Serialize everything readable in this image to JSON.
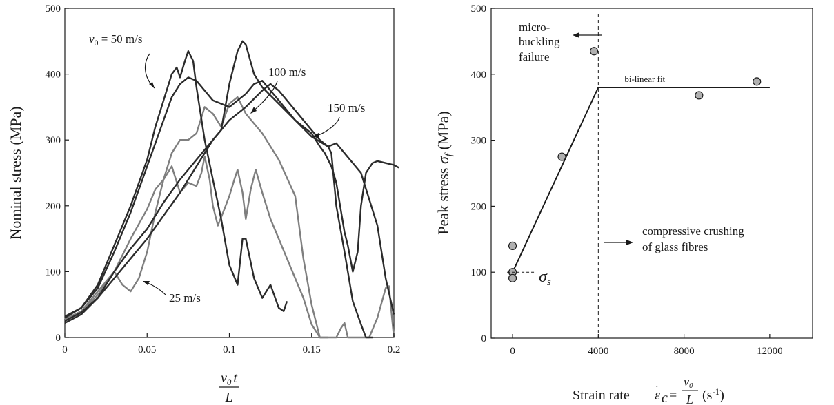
{
  "chart_data": [
    {
      "type": "line",
      "title": "",
      "ylabel": "Nominal stress (MPa)",
      "xlabel": {
        "numerator": "v0t",
        "denominator": "L"
      },
      "xlim": [
        0,
        0.2
      ],
      "ylim": [
        0,
        500
      ],
      "x_ticks": [
        0,
        0.05,
        0.1,
        0.15,
        0.2
      ],
      "x_tick_labels": [
        "0",
        "0.05",
        "0.1",
        "0.15",
        "0.2"
      ],
      "y_ticks": [
        0,
        100,
        200,
        300,
        400,
        500
      ],
      "y_tick_labels": [
        "0",
        "100",
        "200",
        "300",
        "400",
        "500"
      ],
      "grid": false,
      "annotations": {
        "v50": {
          "label_symbol": "v",
          "label_sub": "0",
          "label_rest": " = 50 m/s"
        },
        "v100": "100 m/s",
        "v150": "150 m/s",
        "v25": "25 m/s"
      },
      "series": [
        {
          "color": "#7f7f7f",
          "points": [
            [
              0,
              28
            ],
            [
              0.01,
              38
            ],
            [
              0.02,
              65
            ],
            [
              0.03,
              100
            ],
            [
              0.035,
              80
            ],
            [
              0.04,
              70
            ],
            [
              0.045,
              90
            ],
            [
              0.05,
              130
            ],
            [
              0.055,
              190
            ],
            [
              0.06,
              240
            ],
            [
              0.065,
              260
            ],
            [
              0.07,
              220
            ],
            [
              0.075,
              235
            ],
            [
              0.08,
              230
            ],
            [
              0.083,
              250
            ],
            [
              0.085,
              275
            ],
            [
              0.088,
              240
            ],
            [
              0.09,
              200
            ],
            [
              0.093,
              170
            ],
            [
              0.097,
              195
            ],
            [
              0.1,
              215
            ],
            [
              0.103,
              240
            ],
            [
              0.105,
              255
            ],
            [
              0.108,
              220
            ],
            [
              0.11,
              180
            ],
            [
              0.113,
              225
            ],
            [
              0.116,
              255
            ],
            [
              0.12,
              220
            ],
            [
              0.125,
              180
            ],
            [
              0.13,
              150
            ],
            [
              0.135,
              120
            ],
            [
              0.14,
              90
            ],
            [
              0.145,
              60
            ],
            [
              0.15,
              20
            ],
            [
              0.155,
              0
            ],
            [
              0.165,
              0
            ],
            [
              0.168,
              15
            ],
            [
              0.17,
              22
            ],
            [
              0.172,
              0
            ],
            [
              0.185,
              0
            ],
            [
              0.19,
              30
            ],
            [
              0.195,
              75
            ],
            [
              0.197,
              78
            ],
            [
              0.2,
              0
            ]
          ]
        },
        {
          "color": "#7f7f7f",
          "points": [
            [
              0,
              28
            ],
            [
              0.01,
              40
            ],
            [
              0.02,
              70
            ],
            [
              0.03,
              100
            ],
            [
              0.04,
              150
            ],
            [
              0.05,
              195
            ],
            [
              0.055,
              225
            ],
            [
              0.06,
              240
            ],
            [
              0.065,
              280
            ],
            [
              0.07,
              300
            ],
            [
              0.075,
              300
            ],
            [
              0.08,
              310
            ],
            [
              0.085,
              350
            ],
            [
              0.09,
              340
            ],
            [
              0.095,
              320
            ],
            [
              0.1,
              355
            ],
            [
              0.105,
              365
            ],
            [
              0.11,
              340
            ],
            [
              0.12,
              310
            ],
            [
              0.13,
              270
            ],
            [
              0.14,
              215
            ],
            [
              0.145,
              120
            ],
            [
              0.15,
              50
            ],
            [
              0.155,
              0
            ],
            [
              0.16,
              0
            ]
          ]
        },
        {
          "color": "#2b2b2b",
          "points": [
            [
              0,
              30
            ],
            [
              0.01,
              45
            ],
            [
              0.02,
              80
            ],
            [
              0.03,
              140
            ],
            [
              0.04,
              200
            ],
            [
              0.05,
              270
            ],
            [
              0.055,
              320
            ],
            [
              0.06,
              360
            ],
            [
              0.065,
              400
            ],
            [
              0.068,
              410
            ],
            [
              0.07,
              395
            ],
            [
              0.073,
              420
            ],
            [
              0.075,
              435
            ],
            [
              0.078,
              420
            ],
            [
              0.08,
              380
            ],
            [
              0.085,
              300
            ],
            [
              0.09,
              240
            ],
            [
              0.095,
              180
            ],
            [
              0.1,
              110
            ],
            [
              0.105,
              80
            ],
            [
              0.108,
              150
            ],
            [
              0.11,
              150
            ],
            [
              0.115,
              90
            ],
            [
              0.12,
              60
            ],
            [
              0.125,
              80
            ],
            [
              0.13,
              45
            ],
            [
              0.133,
              40
            ],
            [
              0.135,
              55
            ]
          ]
        },
        {
          "color": "#2b2b2b",
          "points": [
            [
              0,
              32
            ],
            [
              0.01,
              45
            ],
            [
              0.02,
              75
            ],
            [
              0.03,
              130
            ],
            [
              0.04,
              190
            ],
            [
              0.05,
              260
            ],
            [
              0.06,
              330
            ],
            [
              0.065,
              365
            ],
            [
              0.07,
              385
            ],
            [
              0.075,
              395
            ],
            [
              0.08,
              390
            ],
            [
              0.09,
              360
            ],
            [
              0.1,
              350
            ],
            [
              0.11,
              370
            ],
            [
              0.115,
              385
            ],
            [
              0.12,
              390
            ],
            [
              0.13,
              360
            ],
            [
              0.14,
              330
            ],
            [
              0.15,
              305
            ],
            [
              0.16,
              290
            ],
            [
              0.162,
              280
            ],
            [
              0.165,
              200
            ],
            [
              0.17,
              130
            ],
            [
              0.175,
              55
            ],
            [
              0.18,
              20
            ],
            [
              0.183,
              0
            ],
            [
              0.187,
              0
            ]
          ]
        },
        {
          "color": "#2b2b2b",
          "points": [
            [
              0,
              25
            ],
            [
              0.01,
              38
            ],
            [
              0.02,
              60
            ],
            [
              0.03,
              100
            ],
            [
              0.04,
              135
            ],
            [
              0.05,
              165
            ],
            [
              0.06,
              205
            ],
            [
              0.07,
              240
            ],
            [
              0.08,
              270
            ],
            [
              0.09,
              300
            ],
            [
              0.1,
              330
            ],
            [
              0.11,
              350
            ],
            [
              0.12,
              375
            ],
            [
              0.125,
              385
            ],
            [
              0.13,
              375
            ],
            [
              0.14,
              345
            ],
            [
              0.15,
              315
            ],
            [
              0.155,
              300
            ],
            [
              0.16,
              290
            ],
            [
              0.165,
              295
            ],
            [
              0.17,
              280
            ],
            [
              0.18,
              250
            ],
            [
              0.19,
              170
            ],
            [
              0.195,
              90
            ],
            [
              0.2,
              35
            ]
          ]
        },
        {
          "color": "#2b2b2b",
          "points": [
            [
              0,
              22
            ],
            [
              0.01,
              35
            ],
            [
              0.02,
              60
            ],
            [
              0.03,
              90
            ],
            [
              0.04,
              120
            ],
            [
              0.05,
              150
            ],
            [
              0.06,
              185
            ],
            [
              0.07,
              220
            ],
            [
              0.08,
              260
            ],
            [
              0.09,
              300
            ],
            [
              0.095,
              315
            ],
            [
              0.1,
              385
            ],
            [
              0.105,
              435
            ],
            [
              0.108,
              450
            ],
            [
              0.11,
              445
            ],
            [
              0.115,
              400
            ],
            [
              0.12,
              380
            ],
            [
              0.13,
              355
            ],
            [
              0.14,
              330
            ],
            [
              0.15,
              310
            ],
            [
              0.155,
              290
            ],
            [
              0.158,
              280
            ],
            [
              0.162,
              260
            ],
            [
              0.165,
              235
            ],
            [
              0.17,
              160
            ],
            [
              0.172,
              140
            ],
            [
              0.175,
              100
            ],
            [
              0.178,
              130
            ],
            [
              0.18,
              200
            ],
            [
              0.183,
              250
            ],
            [
              0.187,
              265
            ],
            [
              0.19,
              268
            ],
            [
              0.195,
              265
            ],
            [
              0.2,
              262
            ],
            [
              0.203,
              258
            ]
          ]
        }
      ]
    },
    {
      "type": "scatter",
      "title": "",
      "ylabel": {
        "text": "Peak stress ",
        "symbol": "σ",
        "sub": "f",
        "unit": " (MPa)"
      },
      "xlabel": {
        "prefix": "Strain rate ",
        "eps": "ε",
        "eps_sub": "c",
        "eq": "=",
        "num": "v",
        "num_sub": "0",
        "den": "L",
        "unit": "(s",
        "unit_sup": "-1",
        "unit_close": ")"
      },
      "xlim": [
        -1000,
        14000
      ],
      "ylim": [
        0,
        500
      ],
      "x_ticks": [
        0,
        4000,
        8000,
        12000
      ],
      "x_tick_labels": [
        "0",
        "4000",
        "8000",
        "12000"
      ],
      "y_ticks": [
        0,
        100,
        200,
        300,
        400,
        500
      ],
      "y_tick_labels": [
        "0",
        "100",
        "200",
        "300",
        "400",
        "500"
      ],
      "grid": false,
      "points": [
        {
          "x": 0,
          "y": 140
        },
        {
          "x": 0,
          "y": 100
        },
        {
          "x": 0,
          "y": 91
        },
        {
          "x": 2300,
          "y": 275
        },
        {
          "x": 3800,
          "y": 435
        },
        {
          "x": 8700,
          "y": 368
        },
        {
          "x": 11400,
          "y": 389
        }
      ],
      "fit": {
        "label": "bi-linear fit",
        "points": [
          [
            0,
            100
          ],
          [
            4000,
            380
          ],
          [
            12000,
            380
          ]
        ]
      },
      "divider_x": 4000,
      "sigma_s": {
        "y": 100,
        "symbol": "σ",
        "sub": "s"
      },
      "annotations": {
        "microbuckling": [
          "micro-",
          "buckling",
          "failure"
        ],
        "crushing": [
          "compressive crushing",
          "of glass fibres"
        ]
      },
      "marker_color": "#b0b0b0"
    }
  ]
}
